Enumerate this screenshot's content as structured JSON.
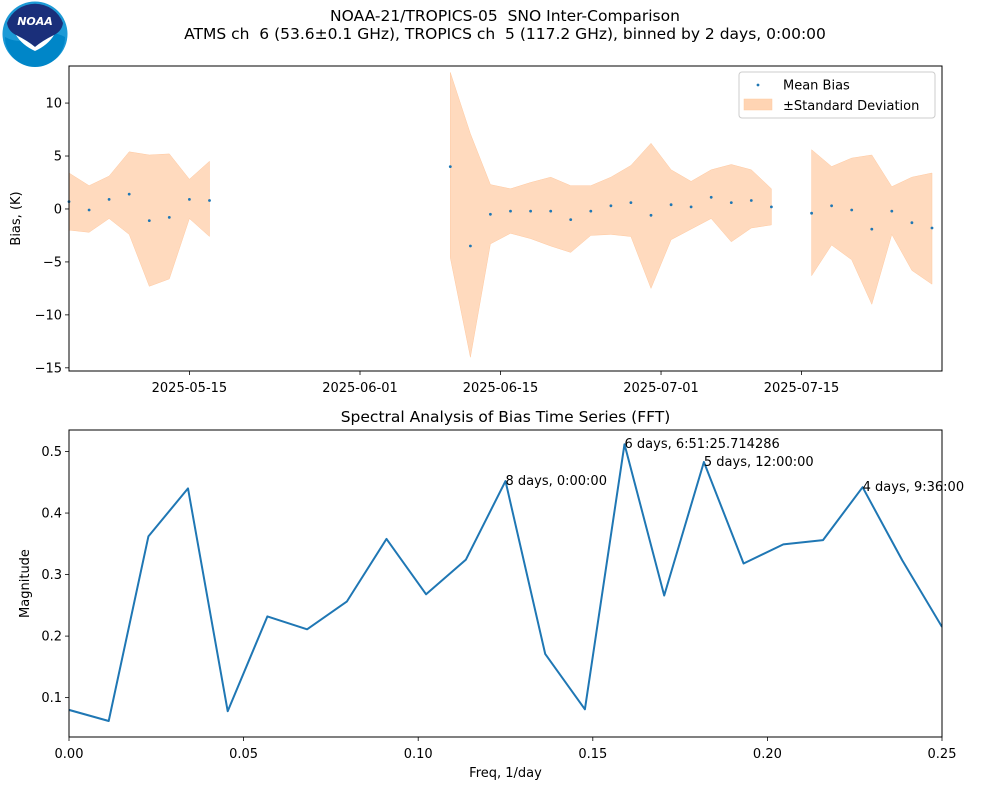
{
  "figure": {
    "title_line1": "NOAA-21/TROPICS-05  SNO Inter-Comparison",
    "title_line2": "ATMS ch  6 (53.6±0.1 GHz), TROPICS ch  5 (117.2 GHz), binned by 2 days, 0:00:00",
    "logo_text": "NOAA",
    "colors": {
      "series": "#1f77b4",
      "band": "#ffd4b3",
      "band_edge": "#ffc9a0",
      "axis": "#000000"
    }
  },
  "chart_data": [
    {
      "type": "scatter",
      "name": "bias-time-series",
      "title": "",
      "xlabel": "",
      "ylabel": "Bias, (K)",
      "x_start": "2025-05-03",
      "x_end": "2025-07-30",
      "ylim": [
        -15.3,
        13.5
      ],
      "yticks": [
        -15,
        -10,
        -5,
        0,
        5,
        10
      ],
      "xticks": [
        {
          "label": "2025-05-15",
          "day": 12
        },
        {
          "label": "2025-06-01",
          "day": 29
        },
        {
          "label": "2025-06-15",
          "day": 43
        },
        {
          "label": "2025-07-01",
          "day": 59
        },
        {
          "label": "2025-07-15",
          "day": 73
        }
      ],
      "legend": {
        "placement": "upper right",
        "mean_label": "Mean Bias",
        "band_label": "±Standard Deviation"
      },
      "segments": [
        {
          "days": [
            0,
            2,
            4,
            6,
            8,
            10,
            12,
            14
          ],
          "mean": [
            0.7,
            -0.1,
            0.9,
            1.4,
            -1.1,
            -0.8,
            0.9,
            0.8
          ],
          "upper": [
            3.4,
            2.2,
            3.1,
            5.4,
            5.1,
            5.2,
            2.8,
            4.5
          ],
          "lower": [
            -2.0,
            -2.2,
            -0.9,
            -2.4,
            -7.3,
            -6.6,
            -0.9,
            -2.6
          ]
        },
        {
          "days": [
            38,
            40,
            42,
            44,
            46,
            48,
            50,
            52,
            54,
            56,
            58,
            60,
            62,
            64,
            66,
            68,
            70
          ],
          "mean": [
            4.0,
            -3.5,
            -0.5,
            -0.2,
            -0.2,
            -0.2,
            -1.0,
            -0.2,
            0.3,
            0.6,
            -0.6,
            0.4,
            0.2,
            1.1,
            0.6,
            0.8,
            0.2
          ],
          "upper": [
            12.9,
            7.1,
            2.3,
            1.9,
            2.5,
            3.0,
            2.2,
            2.2,
            3.0,
            4.1,
            6.2,
            3.7,
            2.6,
            3.7,
            4.2,
            3.7,
            1.9
          ],
          "lower": [
            -4.6,
            -14.0,
            -3.3,
            -2.3,
            -2.8,
            -3.5,
            -4.1,
            -2.5,
            -2.4,
            -2.6,
            -7.5,
            -2.9,
            -1.9,
            -0.9,
            -3.1,
            -1.8,
            -1.5
          ]
        },
        {
          "days": [
            74,
            76,
            78,
            80,
            82,
            84,
            86
          ],
          "mean": [
            -0.4,
            0.3,
            -0.1,
            -1.9,
            -0.2,
            -1.3,
            -1.8
          ],
          "upper": [
            5.6,
            4.0,
            4.8,
            5.1,
            2.1,
            3.0,
            3.4
          ],
          "lower": [
            -6.3,
            -3.4,
            -4.8,
            -9.0,
            -2.4,
            -5.8,
            -7.1
          ]
        }
      ]
    },
    {
      "type": "line",
      "name": "fft-spectrum",
      "title": "Spectral Analysis of Bias Time Series (FFT)",
      "xlabel": "Freq, 1/day",
      "ylabel": "Magnitude",
      "xlim": [
        0,
        0.25
      ],
      "ylim": [
        0.036,
        0.535
      ],
      "xticks": [
        0.0,
        0.05,
        0.1,
        0.15,
        0.2,
        0.25
      ],
      "xtick_labels": [
        "0.00",
        "0.05",
        "0.10",
        "0.15",
        "0.20",
        "0.25"
      ],
      "yticks": [
        0.1,
        0.2,
        0.3,
        0.4,
        0.5
      ],
      "ytick_labels": [
        "0.1",
        "0.2",
        "0.3",
        "0.4",
        "0.5"
      ],
      "x": [
        0.0,
        0.01136,
        0.02273,
        0.03409,
        0.04545,
        0.05682,
        0.06818,
        0.07955,
        0.09091,
        0.10227,
        0.11364,
        0.125,
        0.13636,
        0.14773,
        0.15909,
        0.17045,
        0.18182,
        0.19318,
        0.20455,
        0.21591,
        0.22727,
        0.23864,
        0.25
      ],
      "y": [
        0.08,
        0.062,
        0.362,
        0.44,
        0.078,
        0.232,
        0.211,
        0.256,
        0.358,
        0.268,
        0.324,
        0.452,
        0.171,
        0.081,
        0.512,
        0.266,
        0.483,
        0.318,
        0.349,
        0.356,
        0.442,
        0.323,
        0.215
      ],
      "annotations": [
        {
          "text": "8 days, 0:00:00",
          "x": 0.125,
          "y": 0.452
        },
        {
          "text": "6 days, 6:51:25.714286",
          "x": 0.15909,
          "y": 0.512
        },
        {
          "text": "5 days, 12:00:00",
          "x": 0.18182,
          "y": 0.483
        },
        {
          "text": "4 days, 9:36:00",
          "x": 0.22727,
          "y": 0.442
        }
      ]
    }
  ]
}
